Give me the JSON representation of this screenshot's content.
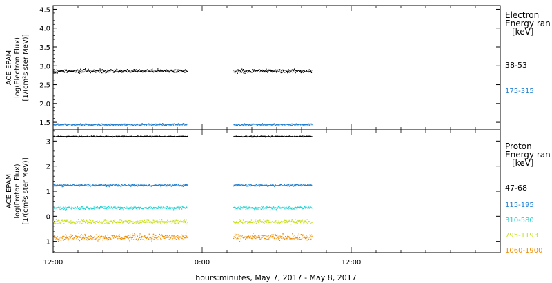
{
  "footer": {
    "xlabel": "hours:minutes, May  7, 2017 - May  8, 2017"
  },
  "chart_data": [
    {
      "type": "scatter",
      "panel": "electron",
      "ylabel_lines": [
        "ACE EPAM",
        "log(Electron Flux)",
        "[1/(cm²s ster MeV)]"
      ],
      "ylim": [
        1.3,
        4.6
      ],
      "yticks": [
        1.5,
        2.0,
        2.5,
        3.0,
        3.5,
        4.0,
        4.5
      ],
      "ytick_labels": [
        "1.5",
        "2.0",
        "2.5",
        "3.0",
        "3.5",
        "4.0",
        "4.5"
      ],
      "xlim_hours": [
        12,
        48
      ],
      "legend_title_lines": [
        "Electron",
        "Energy ran",
        "[keV]"
      ],
      "data_segments_hours": [
        [
          12,
          22.8
        ],
        [
          26.5,
          32.8
        ]
      ],
      "series": [
        {
          "name": "38-53",
          "color": "#000000",
          "level": 2.87,
          "spread": 0.07
        },
        {
          "name": "175-315",
          "color": "#1f7fd0",
          "level": 1.45,
          "spread": 0.04
        }
      ]
    },
    {
      "type": "scatter",
      "panel": "proton",
      "ylabel_lines": [
        "ACE EPAM",
        "log(Proton Flux)",
        "[1/(cm²s ster MeV)]"
      ],
      "ylim": [
        -1.45,
        3.45
      ],
      "yticks": [
        -1,
        0,
        1,
        2,
        3
      ],
      "ytick_labels": [
        "-1",
        "0",
        "1",
        "2",
        "3"
      ],
      "xlim_hours": [
        12,
        48
      ],
      "xticks_hours": [
        12,
        24,
        36
      ],
      "xtick_labels": [
        "12:00",
        "0:00",
        "12:00"
      ],
      "legend_title_lines": [
        "Proton",
        "Energy ran",
        "[keV]"
      ],
      "data_segments_hours": [
        [
          12,
          22.8
        ],
        [
          26.5,
          32.8
        ]
      ],
      "series": [
        {
          "name": "47-68",
          "color": "#000000",
          "level": 3.2,
          "spread": 0.03
        },
        {
          "name": "115-195",
          "color": "#1f7fd0",
          "level": 1.25,
          "spread": 0.06
        },
        {
          "name": "310-580",
          "color": "#22d3d3",
          "level": 0.35,
          "spread": 0.09
        },
        {
          "name": "795-1193",
          "color": "#c8e020",
          "level": -0.2,
          "spread": 0.12
        },
        {
          "name": "1060-1900",
          "color": "#f08c00",
          "level": -0.82,
          "spread": 0.18
        }
      ]
    }
  ]
}
